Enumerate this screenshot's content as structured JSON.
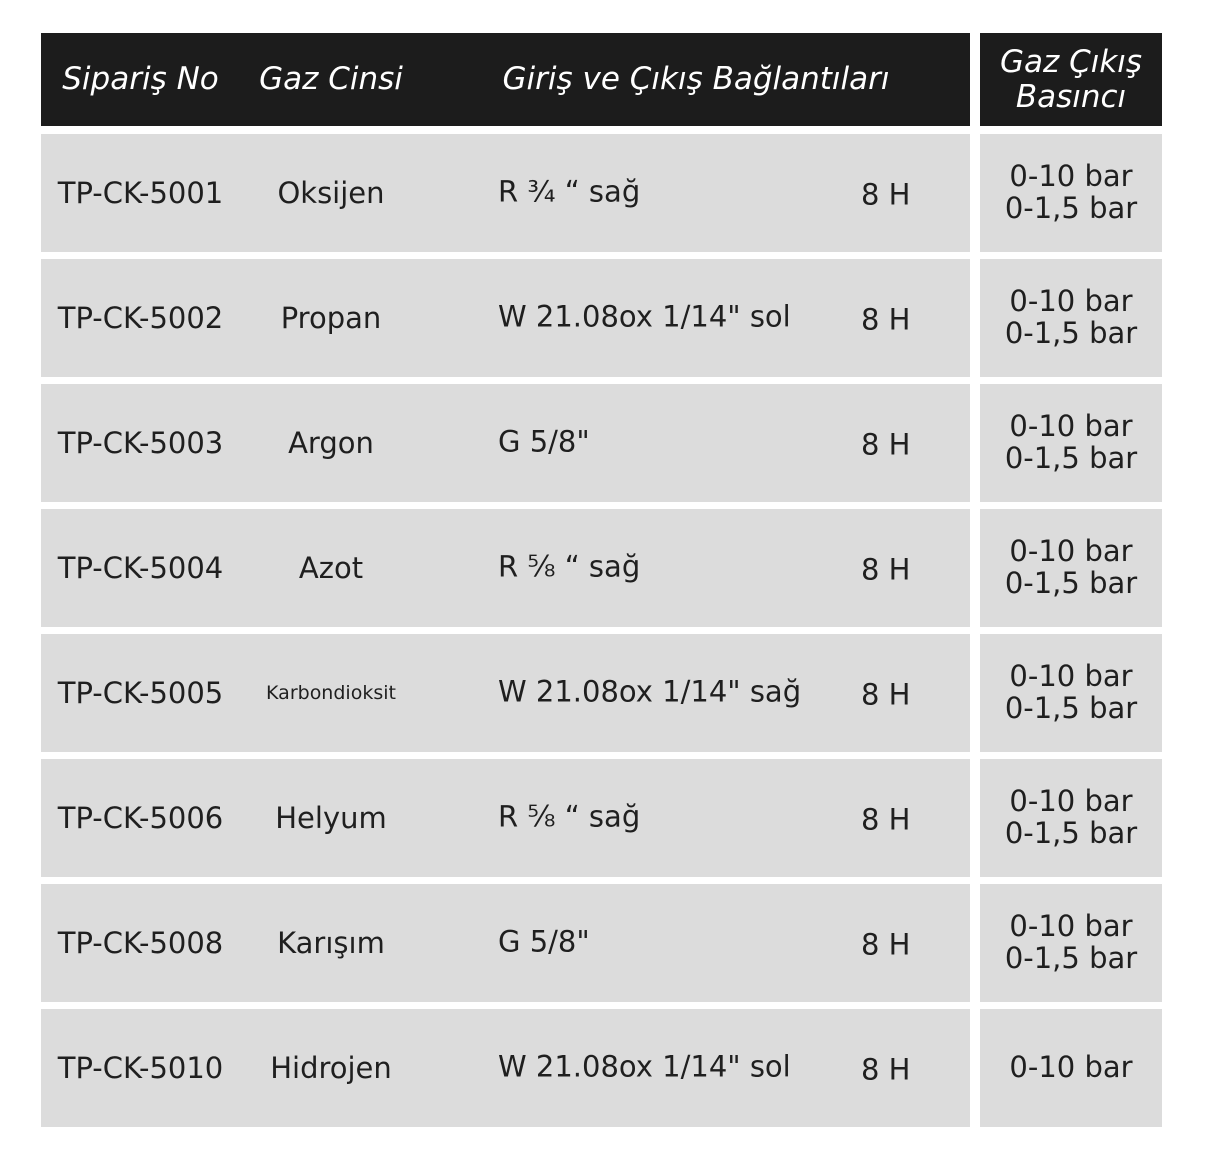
{
  "headers": [
    "Sipariş No",
    "Gaz Cinsi",
    "Giriş ve Çıkış Bağlantıları",
    "Gaz Çıkış Basıncı"
  ],
  "header_pressure_lines": [
    "Gaz Çıkış",
    "Basıncı"
  ],
  "rows": [
    {
      "order": "TP-CK-5001",
      "gas": "Oksijen",
      "connection": "R ¾ “ sağ",
      "thread": "8 H",
      "pressure": [
        "0-10 bar",
        "0-1,5 bar"
      ]
    },
    {
      "order": "TP-CK-5002",
      "gas": "Propan",
      "connection": "W 21.08ox 1/14\" sol",
      "thread": "8 H",
      "pressure": [
        "0-10 bar",
        "0-1,5 bar"
      ]
    },
    {
      "order": "TP-CK-5003",
      "gas": "Argon",
      "connection": "G 5/8\"",
      "thread": "8 H",
      "pressure": [
        "0-10 bar",
        "0-1,5 bar"
      ]
    },
    {
      "order": "TP-CK-5004",
      "gas": "Azot",
      "connection": "R ⅝ “ sağ",
      "thread": "8 H",
      "pressure": [
        "0-10 bar",
        "0-1,5 bar"
      ]
    },
    {
      "order": "TP-CK-5005",
      "gas": "Karbondioksit",
      "connection": "W 21.08ox 1/14\" sağ",
      "thread": "8 H",
      "pressure": [
        "0-10 bar",
        "0-1,5 bar"
      ]
    },
    {
      "order": "TP-CK-5006",
      "gas": "Helyum",
      "connection": "R ⅝ “ sağ",
      "thread": "8 H",
      "pressure": [
        "0-10 bar",
        "0-1,5 bar"
      ]
    },
    {
      "order": "TP-CK-5008",
      "gas": "Karışım",
      "connection": "G 5/8\"",
      "thread": "8 H",
      "pressure": [
        "0-10 bar",
        "0-1,5 bar"
      ]
    },
    {
      "order": "TP-CK-5010",
      "gas": "Hidrojen",
      "connection": "W 21.08ox 1/14\" sol",
      "thread": "8 H",
      "pressure": [
        "0-10 bar"
      ]
    }
  ]
}
